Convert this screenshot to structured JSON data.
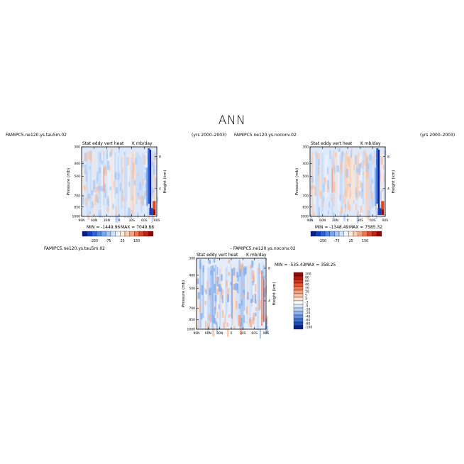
{
  "figure": {
    "title": "ANN"
  },
  "chart_data": [
    {
      "type": "heatmap",
      "case_label": "FAMIPC5.ne120.ys.tau5m.02",
      "years": "(yrs 2000–2003)",
      "variable": "Stat eddy vert heat",
      "units": "K mb/day",
      "ylabel": "Pressure (mb)",
      "ylabel_right": "Height (km)",
      "x_ticks": [
        "90N",
        "60N",
        "30N",
        "0",
        "30S",
        "60S",
        "90S"
      ],
      "y_ticks": [
        "300",
        "400",
        "500",
        "700",
        "850",
        "1000"
      ],
      "y_right_ticks": [
        "8",
        "4"
      ],
      "min_label": "MIN = -1449.96",
      "max_label": "MAX = 7049.88",
      "colorbar_labels": [
        "-250",
        "-75",
        "25",
        "150"
      ],
      "xlim": [
        90,
        -90
      ],
      "ylim": [
        1000,
        300
      ],
      "colors": [
        "#0a1f8f",
        "#1740c0",
        "#2e62d8",
        "#4f86e8",
        "#76a7f0",
        "#a3c6f6",
        "#cfe1fa",
        "#eef4fd",
        "#fdebdc",
        "#f9cdb0",
        "#f5a57f",
        "#ee7551",
        "#de4427",
        "#c01f14",
        "#8f0b08"
      ]
    },
    {
      "type": "heatmap",
      "case_label": "FAMIPC5.ne120.ys.noconv.02",
      "years": "(yrs 2000–2003)",
      "variable": "Stat eddy vert heat",
      "units": "K mb/day",
      "ylabel": "Pressure (mb)",
      "ylabel_right": "Height (km)",
      "x_ticks": [
        "90N",
        "60N",
        "30N",
        "0",
        "30S",
        "60S",
        "90S"
      ],
      "y_ticks": [
        "300",
        "400",
        "500",
        "700",
        "850",
        "1000"
      ],
      "y_right_ticks": [
        "8",
        "4"
      ],
      "min_label": "MIN = -1348.49",
      "max_label": "MAX = 7585.32",
      "colorbar_labels": [
        "-250",
        "-75",
        "25",
        "150"
      ],
      "xlim": [
        90,
        -90
      ],
      "ylim": [
        1000,
        300
      ],
      "colors": [
        "#0a1f8f",
        "#1740c0",
        "#2e62d8",
        "#4f86e8",
        "#76a7f0",
        "#a3c6f6",
        "#cfe1fa",
        "#eef4fd",
        "#fdebdc",
        "#f9cdb0",
        "#f5a57f",
        "#ee7551",
        "#de4427",
        "#c01f14",
        "#8f0b08"
      ]
    },
    {
      "type": "heatmap",
      "case_label": "FAMIPC5.ne120.ys.tau5m.02",
      "diff_label": "– FAMIPC5.ne120.ys.noconv.02",
      "variable": "Stat eddy vert heat",
      "units": "K mb/day",
      "ylabel": "Pressure (mb)",
      "ylabel_right": "Height (km)",
      "x_ticks": [
        "90N",
        "60N",
        "30N",
        "0",
        "30S",
        "60S",
        "90S"
      ],
      "y_ticks": [
        "300",
        "400",
        "500",
        "700",
        "850",
        "1000"
      ],
      "y_right_ticks": [
        "8",
        "4"
      ],
      "min_label": "MIN = -535.43",
      "max_label": "MAX = 358.25",
      "colorbar_labels": [
        "100",
        "80",
        "60",
        "40",
        "20",
        "10",
        "5",
        "3",
        "-3",
        "-5",
        "-10",
        "-20",
        "-40",
        "-60",
        "-80",
        "-100"
      ],
      "xlim": [
        90,
        -90
      ],
      "ylim": [
        1000,
        300
      ],
      "colors": [
        "#8f0b08",
        "#b3190f",
        "#d3321d",
        "#e85335",
        "#f17a55",
        "#f59f7c",
        "#f8c3a6",
        "#fbe2d2",
        "#ffffff",
        "#d9e7fb",
        "#b7d0f6",
        "#8fb4ef",
        "#6593e3",
        "#3c6fd2",
        "#1f4bb5",
        "#0a2488"
      ]
    }
  ]
}
